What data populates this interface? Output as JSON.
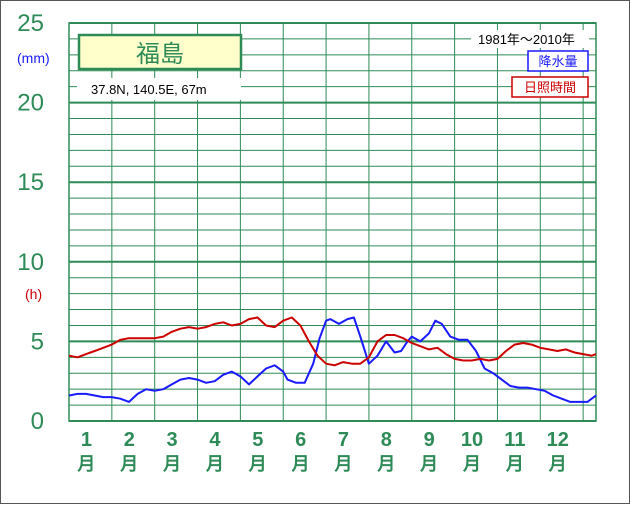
{
  "chart_data": {
    "type": "line",
    "title": "福島",
    "subtitle": "37.8N,  140.5E,  67m",
    "period": "1981年〜2010年",
    "y_unit_precip": "(mm)",
    "y_unit_sun": "(h)",
    "y_ticks": [
      "0",
      "5",
      "10",
      "15",
      "20",
      "25"
    ],
    "ylim": [
      0,
      25
    ],
    "x_tick_numbers": [
      "1",
      "2",
      "3",
      "4",
      "5",
      "6",
      "7",
      "8",
      "9",
      "10",
      "11",
      "12"
    ],
    "x_tick_unit": "月",
    "xlim": [
      0.5,
      12.8
    ],
    "grid": true,
    "legend_position": "top-right",
    "series": [
      {
        "name": "降水量",
        "color": "#1a1aff",
        "x": [
          0.5,
          0.7,
          0.9,
          1.1,
          1.3,
          1.5,
          1.7,
          1.9,
          2.1,
          2.3,
          2.5,
          2.7,
          2.9,
          3.1,
          3.3,
          3.5,
          3.7,
          3.9,
          4.1,
          4.3,
          4.5,
          4.7,
          4.9,
          5.1,
          5.3,
          5.5,
          5.6,
          5.8,
          6.0,
          6.2,
          6.35,
          6.5,
          6.6,
          6.8,
          7.0,
          7.15,
          7.3,
          7.5,
          7.7,
          7.9,
          8.1,
          8.25,
          8.4,
          8.5,
          8.7,
          8.9,
          9.05,
          9.2,
          9.4,
          9.6,
          9.8,
          10.0,
          10.2,
          10.4,
          10.6,
          10.8,
          11.0,
          11.2,
          11.4,
          11.6,
          11.8,
          12.0,
          12.2,
          12.4,
          12.6,
          12.8
        ],
        "values": [
          1.6,
          1.7,
          1.7,
          1.6,
          1.5,
          1.5,
          1.4,
          1.2,
          1.7,
          2.0,
          1.9,
          2.0,
          2.3,
          2.6,
          2.7,
          2.6,
          2.4,
          2.5,
          2.9,
          3.1,
          2.8,
          2.3,
          2.8,
          3.3,
          3.5,
          3.1,
          2.6,
          2.4,
          2.4,
          3.6,
          5.2,
          6.3,
          6.4,
          6.1,
          6.4,
          6.5,
          5.3,
          3.6,
          4.1,
          5.0,
          4.3,
          4.4,
          5.0,
          5.3,
          5.0,
          5.5,
          6.3,
          6.1,
          5.3,
          5.1,
          5.1,
          4.4,
          3.3,
          3.0,
          2.6,
          2.2,
          2.1,
          2.1,
          2.0,
          1.9,
          1.6,
          1.4,
          1.2,
          1.2,
          1.2,
          1.6
        ]
      },
      {
        "name": "日照時間",
        "color": "#cc0000",
        "x": [
          0.5,
          0.7,
          0.9,
          1.1,
          1.3,
          1.5,
          1.7,
          1.9,
          2.1,
          2.3,
          2.5,
          2.7,
          2.9,
          3.1,
          3.3,
          3.5,
          3.7,
          3.9,
          4.1,
          4.3,
          4.5,
          4.7,
          4.9,
          5.1,
          5.3,
          5.5,
          5.7,
          5.9,
          6.1,
          6.3,
          6.5,
          6.7,
          6.9,
          7.1,
          7.3,
          7.5,
          7.7,
          7.9,
          8.1,
          8.3,
          8.5,
          8.7,
          8.9,
          9.1,
          9.3,
          9.5,
          9.7,
          9.9,
          10.1,
          10.3,
          10.5,
          10.7,
          10.9,
          11.1,
          11.3,
          11.5,
          11.7,
          11.9,
          12.1,
          12.3,
          12.5,
          12.7,
          12.8
        ],
        "values": [
          4.1,
          4.0,
          4.2,
          4.4,
          4.6,
          4.8,
          5.1,
          5.2,
          5.2,
          5.2,
          5.2,
          5.3,
          5.6,
          5.8,
          5.9,
          5.8,
          5.9,
          6.1,
          6.2,
          6.0,
          6.1,
          6.4,
          6.5,
          6.0,
          5.9,
          6.3,
          6.5,
          6.0,
          5.0,
          4.1,
          3.6,
          3.5,
          3.7,
          3.6,
          3.6,
          4.0,
          5.0,
          5.4,
          5.4,
          5.2,
          4.9,
          4.7,
          4.5,
          4.6,
          4.2,
          3.9,
          3.8,
          3.8,
          3.9,
          3.8,
          3.9,
          4.4,
          4.8,
          4.9,
          4.8,
          4.6,
          4.5,
          4.4,
          4.5,
          4.3,
          4.2,
          4.1,
          4.2
        ]
      }
    ]
  }
}
